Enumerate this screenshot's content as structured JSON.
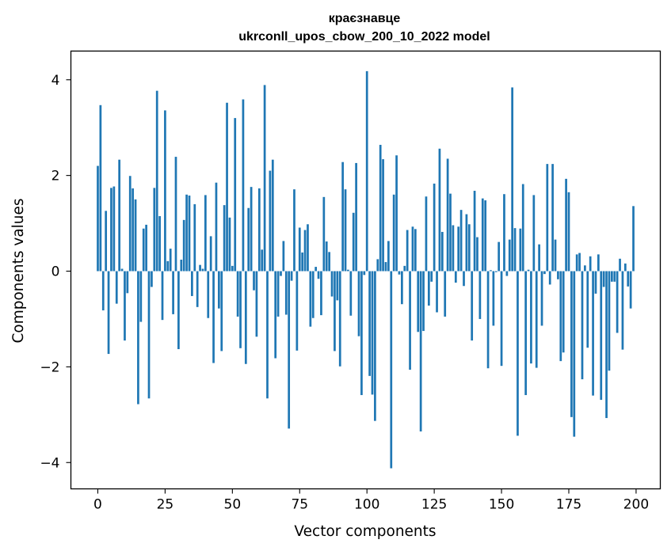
{
  "chart_data": {
    "type": "bar",
    "title": "краєзнавце",
    "subtitle": "ukrconll_upos_cbow_200_10_2022 model",
    "xlabel": "Vector components",
    "ylabel": "Components values",
    "xlim": [
      -10,
      209
    ],
    "ylim": [
      -4.55,
      4.6
    ],
    "xticks": [
      0,
      25,
      50,
      75,
      100,
      125,
      150,
      175,
      200
    ],
    "yticks": [
      -4,
      -2,
      0,
      2,
      4
    ],
    "ytick_labels": [
      "−4",
      "−2",
      "0",
      "2",
      "4"
    ],
    "grid": false,
    "bar_color": "#1f77b4",
    "x": [
      0,
      1,
      2,
      3,
      4,
      5,
      6,
      7,
      8,
      9,
      10,
      11,
      12,
      13,
      14,
      15,
      16,
      17,
      18,
      19,
      20,
      21,
      22,
      23,
      24,
      25,
      26,
      27,
      28,
      29,
      30,
      31,
      32,
      33,
      34,
      35,
      36,
      37,
      38,
      39,
      40,
      41,
      42,
      43,
      44,
      45,
      46,
      47,
      48,
      49,
      50,
      51,
      52,
      53,
      54,
      55,
      56,
      57,
      58,
      59,
      60,
      61,
      62,
      63,
      64,
      65,
      66,
      67,
      68,
      69,
      70,
      71,
      72,
      73,
      74,
      75,
      76,
      77,
      78,
      79,
      80,
      81,
      82,
      83,
      84,
      85,
      86,
      87,
      88,
      89,
      90,
      91,
      92,
      93,
      94,
      95,
      96,
      97,
      98,
      99,
      100,
      101,
      102,
      103,
      104,
      105,
      106,
      107,
      108,
      109,
      110,
      111,
      112,
      113,
      114,
      115,
      116,
      117,
      118,
      119,
      120,
      121,
      122,
      123,
      124,
      125,
      126,
      127,
      128,
      129,
      130,
      131,
      132,
      133,
      134,
      135,
      136,
      137,
      138,
      139,
      140,
      141,
      142,
      143,
      144,
      145,
      146,
      147,
      148,
      149,
      150,
      151,
      152,
      153,
      154,
      155,
      156,
      157,
      158,
      159,
      160,
      161,
      162,
      163,
      164,
      165,
      166,
      167,
      168,
      169,
      170,
      171,
      172,
      173,
      174,
      175,
      176,
      177,
      178,
      179,
      180,
      181,
      182,
      183,
      184,
      185,
      186,
      187,
      188,
      189,
      190,
      191,
      192,
      193,
      194,
      195,
      196,
      197,
      198,
      199
    ],
    "values": [
      2.2,
      3.47,
      -0.82,
      1.26,
      -1.73,
      1.74,
      1.77,
      -0.68,
      2.33,
      0.05,
      -1.45,
      -0.46,
      1.99,
      1.73,
      1.5,
      -2.78,
      -1.06,
      0.89,
      0.97,
      -2.66,
      -0.33,
      1.74,
      3.77,
      1.15,
      -1.02,
      3.36,
      0.21,
      0.47,
      -0.9,
      2.39,
      -1.63,
      0.24,
      1.07,
      1.6,
      1.58,
      -0.52,
      1.4,
      -0.75,
      0.13,
      0.05,
      1.59,
      -0.98,
      0.73,
      -1.92,
      1.85,
      -0.78,
      -1.67,
      1.38,
      3.52,
      1.12,
      0.11,
      3.2,
      -0.95,
      -1.61,
      3.59,
      -1.94,
      1.32,
      1.76,
      -0.4,
      -1.37,
      1.73,
      0.45,
      3.89,
      -2.66,
      2.1,
      2.33,
      -1.82,
      -0.95,
      -0.1,
      0.63,
      -0.91,
      -3.29,
      -0.2,
      1.71,
      -1.66,
      0.91,
      0.39,
      0.86,
      0.98,
      -1.16,
      -0.98,
      0.09,
      -0.16,
      -0.92,
      1.55,
      0.62,
      0.4,
      -0.53,
      -1.67,
      -0.61,
      -1.99,
      2.28,
      1.71,
      0.03,
      -0.93,
      1.22,
      2.26,
      -1.36,
      -2.59,
      -0.08,
      4.18,
      -2.19,
      -2.58,
      -3.13,
      0.25,
      2.64,
      2.34,
      0.19,
      0.63,
      -4.12,
      1.6,
      2.42,
      -0.07,
      -0.69,
      0.11,
      0.86,
      -2.06,
      0.93,
      0.88,
      -1.27,
      -3.35,
      -1.25,
      1.56,
      -0.72,
      -0.22,
      1.83,
      -0.86,
      2.56,
      0.82,
      -0.95,
      2.35,
      1.62,
      0.96,
      -0.24,
      0.93,
      1.28,
      -0.31,
      1.19,
      0.98,
      -1.45,
      1.68,
      0.71,
      -1.0,
      1.52,
      1.48,
      -2.03,
      0.02,
      -1.14,
      -0.02,
      0.61,
      -1.98,
      1.61,
      -0.1,
      0.66,
      3.84,
      0.9,
      -3.44,
      0.89,
      1.82,
      -2.59,
      0.03,
      -1.93,
      1.59,
      -2.02,
      0.56,
      -1.14,
      -0.06,
      2.24,
      -0.28,
      2.24,
      0.66,
      -0.17,
      -1.88,
      -1.7,
      1.93,
      1.65,
      -3.05,
      -3.46,
      0.35,
      0.38,
      -2.26,
      0.12,
      -1.6,
      0.31,
      -2.6,
      -0.47,
      0.35,
      -2.69,
      -0.33,
      -3.07,
      -2.08,
      -0.22,
      -0.22,
      -1.29,
      0.26,
      -1.64,
      0.16,
      -0.32,
      -0.78,
      1.36
    ]
  }
}
